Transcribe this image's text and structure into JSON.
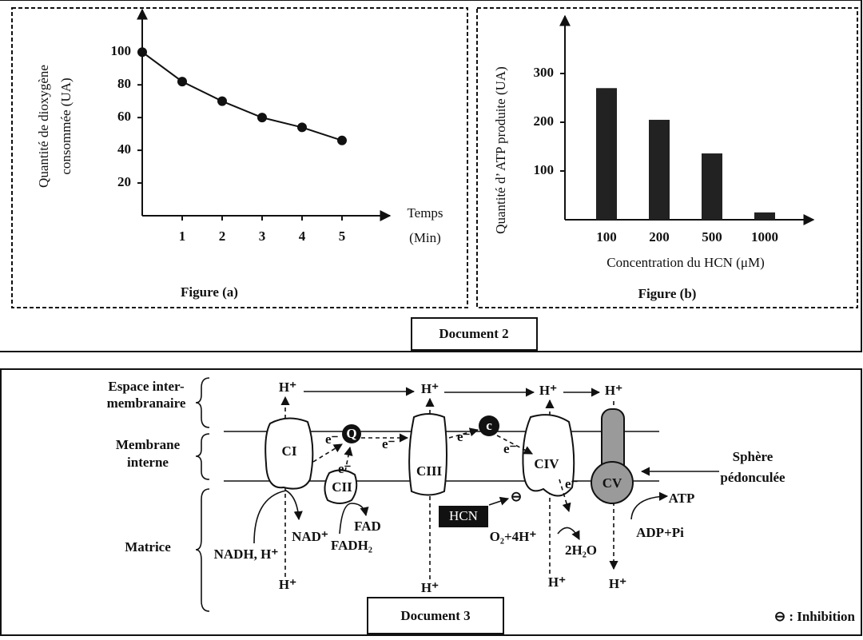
{
  "chart_data": [
    {
      "type": "line",
      "title": "Figure (a)",
      "xlabel": "Temps",
      "xunit": "(Min)",
      "ylabel": [
        "Quantité de dioxygène",
        "consommée (UA)"
      ],
      "x": [
        0,
        1,
        2,
        3,
        4,
        5
      ],
      "values": [
        100,
        82,
        70,
        60,
        54,
        46
      ],
      "color": "#111111",
      "xlim": [
        0,
        6.2
      ],
      "ylim": [
        0,
        126
      ],
      "xticks": [
        1,
        2,
        3,
        4,
        5
      ],
      "yticks": [
        20,
        40,
        60,
        80,
        100
      ]
    },
    {
      "type": "bar",
      "title": "Figure (b)",
      "xlabel": "Concentration du HCN (μM)",
      "ylabel": "Quantité d’  ATP produite (UA)",
      "categories": [
        "100",
        "200",
        "500",
        "1000"
      ],
      "values": [
        270,
        205,
        136,
        15
      ],
      "color": "#222222",
      "ylim": [
        0,
        418
      ],
      "yticks": [
        100,
        200,
        300
      ]
    }
  ],
  "document2": "Document 2",
  "diagram": {
    "regions": [
      "Espace inter-",
      "membranaire",
      "Membrane",
      "interne",
      "Matrice"
    ],
    "complexes": [
      "CI",
      "Q",
      "CII",
      "CIII",
      "c",
      "CIV",
      "CV"
    ],
    "protons": [
      "H⁺",
      "H⁺",
      "H⁺",
      "H⁺",
      "H⁺",
      "H⁺",
      "H⁺",
      "H⁺"
    ],
    "electrons": [
      "e⁻",
      "e⁻",
      "e⁻",
      "e⁻",
      "e⁻",
      "e⁻"
    ],
    "molecules": [
      "NADH, H⁺",
      "NAD⁺",
      "FADH₂",
      "FAD",
      "O₂+4H⁺",
      "2H₂O",
      "ATP",
      "ADP+Pi"
    ],
    "inhibitor": "HCN",
    "inhibition_symbol": "⊖",
    "sphere": [
      "Sphère",
      "pédonculée"
    ],
    "legend": "⊖ : Inhibition",
    "caption": "Document 3"
  }
}
